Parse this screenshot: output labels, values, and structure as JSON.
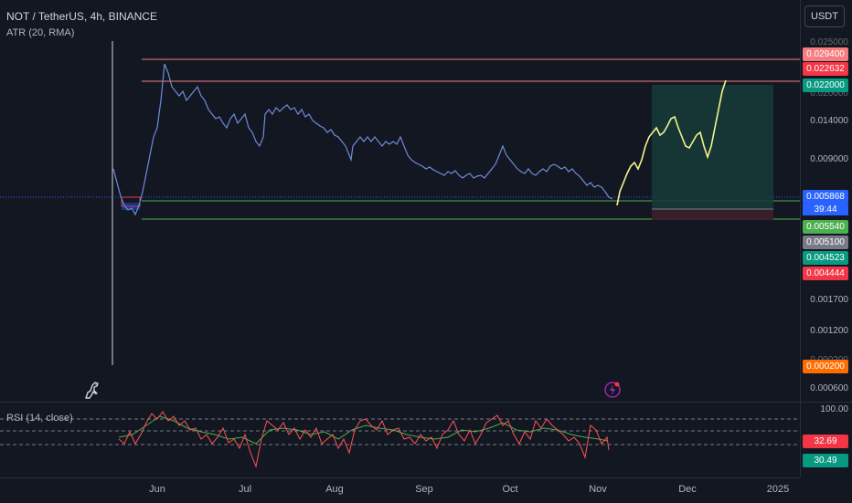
{
  "header": {
    "symbol": "NOT / TetherUS, 4h, BINANCE",
    "indicator": "ATR (20, RMA)",
    "currency": "USDT"
  },
  "rsi": {
    "title": "RSI (14, close)",
    "level_top": "100.00",
    "value_1": "32.69",
    "value_2": "30.49"
  },
  "price_ticks": [
    "0.025000",
    "0.020000",
    "0.014000",
    "0.009000",
    "0.001700",
    "0.001200",
    "0.000200",
    "0.000600"
  ],
  "badges": {
    "b1": "0.029400",
    "b2": "0.022632",
    "b3": "0.022000",
    "b4": "0.005868",
    "countdown": "39:44",
    "b5": "0.005540",
    "b6": "0.005100",
    "b7": "0.004523",
    "b8": "0.004444",
    "b9": "0.000200"
  },
  "time_axis": [
    "Jun",
    "Jul",
    "Aug",
    "Sep",
    "Oct",
    "Nov",
    "Dec",
    "2025"
  ],
  "colors": {
    "background": "#131722",
    "price_line": "#6f8bd8",
    "projection": "#f3f48b",
    "rsi_line": "#ff5252",
    "rsi_ma": "#4caf50",
    "resistance": "#f77c80",
    "support": "#4caf50",
    "target_zone": "#1a3b3b",
    "stop_zone": "#3a1f2a"
  }
}
